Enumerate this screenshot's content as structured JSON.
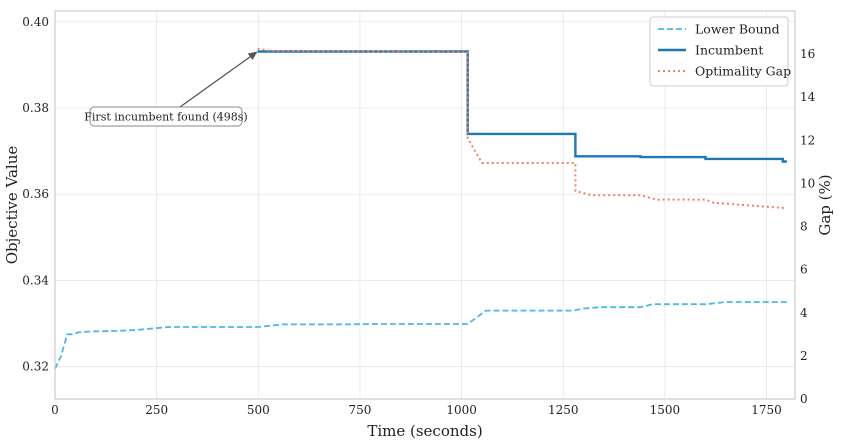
{
  "chart_data": {
    "type": "line",
    "title": "",
    "xlabel": "Time (seconds)",
    "ylabel": "Objective Value",
    "y2label": "Gap (%)",
    "xlim": [
      0,
      1820
    ],
    "ylim": [
      0.3125,
      0.4025
    ],
    "y2lim": [
      0,
      18.0
    ],
    "xticks": [
      "0",
      "250",
      "500",
      "750",
      "1000",
      "1250",
      "1500",
      "1750"
    ],
    "xtick_values": [
      0,
      250,
      500,
      750,
      1000,
      1250,
      1500,
      1750
    ],
    "yticks": [
      "0.32",
      "0.34",
      "0.36",
      "0.38",
      "0.40"
    ],
    "ytick_values": [
      0.32,
      0.34,
      0.36,
      0.38,
      0.4
    ],
    "y2ticks": [
      "0",
      "2",
      "4",
      "6",
      "8",
      "10",
      "12",
      "14",
      "16"
    ],
    "y2tick_values": [
      0,
      2,
      4,
      6,
      8,
      10,
      12,
      14,
      16
    ],
    "grid": true,
    "legend_position": "top-right",
    "series": [
      {
        "name": "Lower Bound",
        "axis": "left",
        "style": "dashed",
        "color": "#4db8e8",
        "x": [
          0,
          15,
          30,
          40,
          60,
          100,
          150,
          200,
          280,
          300,
          400,
          500,
          560,
          600,
          700,
          800,
          900,
          1000,
          1015,
          1060,
          1100,
          1200,
          1275,
          1300,
          1340,
          1400,
          1440,
          1470,
          1550,
          1600,
          1650,
          1700,
          1800
        ],
        "y": [
          0.3195,
          0.3225,
          0.3275,
          0.3275,
          0.328,
          0.3282,
          0.3283,
          0.3285,
          0.3292,
          0.3292,
          0.3292,
          0.3292,
          0.3298,
          0.3298,
          0.3298,
          0.3299,
          0.3299,
          0.3299,
          0.3299,
          0.333,
          0.333,
          0.333,
          0.333,
          0.3335,
          0.3338,
          0.3338,
          0.3338,
          0.3345,
          0.3345,
          0.3345,
          0.335,
          0.335,
          0.335
        ]
      },
      {
        "name": "Incumbent",
        "axis": "left",
        "style": "solid",
        "color": "#1f77b4",
        "x": [
          498,
          1015,
          1015,
          1280,
          1280,
          1440,
          1440,
          1600,
          1600,
          1790,
          1790,
          1800
        ],
        "y": [
          0.3931,
          0.3931,
          0.374,
          0.374,
          0.3688,
          0.3688,
          0.3686,
          0.3686,
          0.3682,
          0.3682,
          0.3676,
          0.3676
        ]
      },
      {
        "name": "Optimality Gap",
        "axis": "right",
        "style": "dotted",
        "color": "#f08060",
        "x": [
          498,
          530,
          1015,
          1015,
          1050,
          1280,
          1280,
          1320,
          1440,
          1480,
          1600,
          1620,
          1800
        ],
        "y": [
          16.25,
          16.15,
          16.1,
          12.1,
          10.95,
          10.95,
          9.65,
          9.45,
          9.45,
          9.25,
          9.25,
          9.1,
          8.85
        ]
      }
    ],
    "annotations": [
      {
        "text": "First incumbent found (498s)",
        "x": 498,
        "y": 0.3931
      }
    ]
  }
}
